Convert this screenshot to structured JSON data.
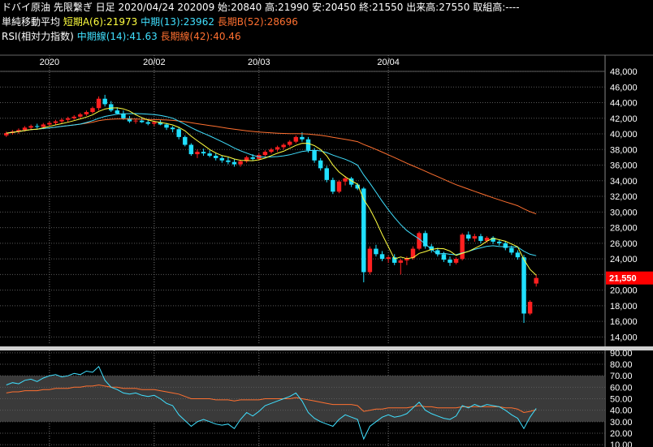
{
  "header": {
    "title": "ドバイ原油 先限繋ぎ 日足 2020/04/24 202009 始:20840 高:21990 安:20450 終:21550 出来高:27550 取組高:----",
    "ma_label": "単純移動平均",
    "ma_short": "短期A(6):21973",
    "ma_mid": "中期(13):23962",
    "ma_long": "長期B(52):28696",
    "rsi_label": "RSI(相対力指数)",
    "rsi_mid": "中期線(14):41.63",
    "rsi_long": "長期線(42):40.46"
  },
  "colors": {
    "background": "#000000",
    "up_candle": "#ff2020",
    "down_candle": "#20e0ff",
    "ma_short": "#ffff40",
    "ma_mid": "#40e0ff",
    "ma_long": "#ff7030",
    "grid": "#5a5a5a",
    "rsi_band": "#3a3a3a",
    "last_price_box": "#ff0000"
  },
  "chart_data": [
    {
      "type": "candlestick",
      "x_tick_labels": [
        "2020",
        "20/02",
        "20/03",
        "20/04"
      ],
      "y_ticks": [
        "48,000",
        "46,000",
        "44,000",
        "42,000",
        "40,000",
        "38,000",
        "36,000",
        "34,000",
        "32,000",
        "30,000",
        "28,000",
        "26,000",
        "24,000",
        "22,000",
        "20,000",
        "18,000",
        "16,000",
        "14,000"
      ],
      "ylim": [
        13000,
        48000
      ],
      "last_price_label": "21,550",
      "last_price": 21550,
      "candles": [
        [
          39800,
          40300,
          39600,
          40100
        ],
        [
          40100,
          40500,
          39900,
          40300
        ],
        [
          40300,
          40700,
          40000,
          40500
        ],
        [
          40500,
          41000,
          40300,
          40800
        ],
        [
          40800,
          41200,
          40500,
          41000
        ],
        [
          41000,
          41300,
          40700,
          40900
        ],
        [
          40900,
          41400,
          40600,
          41200
        ],
        [
          41200,
          41600,
          41000,
          41400
        ],
        [
          41400,
          41800,
          41200,
          41600
        ],
        [
          41600,
          42000,
          41300,
          41800
        ],
        [
          41800,
          42200,
          41500,
          42000
        ],
        [
          42000,
          42400,
          41800,
          42200
        ],
        [
          42200,
          42700,
          42000,
          42500
        ],
        [
          42500,
          43000,
          42300,
          42800
        ],
        [
          42800,
          43500,
          42600,
          43300
        ],
        [
          43300,
          44800,
          43000,
          44500
        ],
        [
          44500,
          45000,
          43500,
          43800
        ],
        [
          43800,
          44200,
          42800,
          43000
        ],
        [
          43000,
          43400,
          42500,
          42600
        ],
        [
          42600,
          43000,
          41800,
          42000
        ],
        [
          42000,
          42300,
          41400,
          41600
        ],
        [
          41600,
          42000,
          41300,
          41700
        ],
        [
          41700,
          42100,
          41400,
          41500
        ],
        [
          41500,
          41900,
          41100,
          41300
        ],
        [
          41300,
          41700,
          41000,
          41500
        ],
        [
          41500,
          41800,
          41100,
          41200
        ],
        [
          41200,
          41400,
          40500,
          40800
        ],
        [
          40800,
          41000,
          40200,
          40600
        ],
        [
          40600,
          40900,
          39300,
          39600
        ],
        [
          39600,
          39800,
          38400,
          38600
        ],
        [
          38600,
          38800,
          37200,
          37400
        ],
        [
          37400,
          38000,
          36900,
          37700
        ],
        [
          37700,
          38100,
          37200,
          37500
        ],
        [
          37500,
          37900,
          37000,
          37200
        ],
        [
          37200,
          37600,
          36600,
          36900
        ],
        [
          36900,
          37200,
          36300,
          36600
        ],
        [
          36600,
          37000,
          36100,
          36400
        ],
        [
          36400,
          36800,
          35800,
          36100
        ],
        [
          36100,
          36700,
          35800,
          36500
        ],
        [
          36500,
          37200,
          36300,
          37000
        ],
        [
          37000,
          37400,
          36600,
          36800
        ],
        [
          36800,
          37500,
          36600,
          37300
        ],
        [
          37300,
          37900,
          37100,
          37700
        ],
        [
          37700,
          38200,
          37500,
          38000
        ],
        [
          38000,
          38500,
          37700,
          38300
        ],
        [
          38300,
          38800,
          38000,
          38600
        ],
        [
          38600,
          39200,
          38400,
          39000
        ],
        [
          39000,
          39800,
          38800,
          39600
        ],
        [
          39600,
          40200,
          39000,
          39300
        ],
        [
          39300,
          39600,
          37600,
          37900
        ],
        [
          37900,
          38200,
          36300,
          36600
        ],
        [
          36600,
          36900,
          35300,
          35600
        ],
        [
          35600,
          35900,
          33800,
          34100
        ],
        [
          34100,
          34400,
          32300,
          32600
        ],
        [
          32600,
          34100,
          32400,
          33900
        ],
        [
          33900,
          34600,
          33400,
          34300
        ],
        [
          34300,
          34500,
          33200,
          33500
        ],
        [
          33500,
          33700,
          32800,
          33000
        ],
        [
          33000,
          33200,
          21000,
          22300
        ],
        [
          22300,
          25600,
          22000,
          25300
        ],
        [
          25300,
          25800,
          24300,
          24600
        ],
        [
          24600,
          25000,
          23700,
          24000
        ],
        [
          24000,
          24400,
          23500,
          24200
        ],
        [
          24200,
          24600,
          23200,
          23500
        ],
        [
          23500,
          24000,
          22000,
          23800
        ],
        [
          23800,
          24300,
          23200,
          24100
        ],
        [
          24100,
          25600,
          23900,
          25300
        ],
        [
          25300,
          27500,
          25100,
          27300
        ],
        [
          27300,
          27600,
          25300,
          25600
        ],
        [
          25600,
          25900,
          24800,
          25100
        ],
        [
          25100,
          25400,
          24300,
          24600
        ],
        [
          24600,
          24900,
          23600,
          23900
        ],
        [
          23900,
          24300,
          23100,
          23500
        ],
        [
          23500,
          24200,
          23300,
          24000
        ],
        [
          24000,
          27300,
          23800,
          27100
        ],
        [
          27100,
          27500,
          26300,
          26600
        ],
        [
          26600,
          27200,
          26200,
          26900
        ],
        [
          26900,
          27200,
          26000,
          26300
        ],
        [
          26300,
          26900,
          26100,
          26700
        ],
        [
          26700,
          26900,
          25900,
          26200
        ],
        [
          26200,
          26500,
          25700,
          26000
        ],
        [
          26000,
          26300,
          25100,
          25400
        ],
        [
          25400,
          25700,
          24500,
          24800
        ],
        [
          24800,
          25100,
          23900,
          24200
        ],
        [
          24200,
          24500,
          15800,
          17000
        ],
        [
          17000,
          18700,
          16800,
          18500
        ],
        [
          20840,
          21990,
          20450,
          21550
        ]
      ],
      "x_tick_index": [
        7,
        24,
        41,
        62
      ]
    },
    {
      "type": "line",
      "name": "RSI",
      "y_ticks": [
        "90.00",
        "80.00",
        "70.00",
        "60.00",
        "50.00",
        "40.00",
        "30.00",
        "20.00",
        "10.00"
      ],
      "ylim": [
        8,
        92
      ],
      "rsi14": [
        62,
        64,
        63,
        66,
        67,
        65,
        68,
        70,
        71,
        69,
        70,
        72,
        71,
        74,
        73,
        78,
        66,
        60,
        58,
        55,
        54,
        55,
        53,
        52,
        53,
        50,
        46,
        44,
        36,
        31,
        26,
        30,
        32,
        30,
        28,
        27,
        28,
        24,
        32,
        38,
        35,
        39,
        44,
        46,
        48,
        50,
        52,
        55,
        48,
        38,
        33,
        30,
        28,
        26,
        32,
        36,
        34,
        32,
        15,
        26,
        30,
        34,
        36,
        34,
        35,
        37,
        42,
        47,
        40,
        37,
        35,
        33,
        32,
        35,
        44,
        42,
        45,
        43,
        45,
        44,
        43,
        40,
        36,
        33,
        24,
        34,
        41.63
      ],
      "rsi42": [
        55,
        56,
        56,
        57,
        57,
        57,
        58,
        58,
        59,
        59,
        59,
        60,
        60,
        61,
        61,
        62,
        61,
        60,
        60,
        59,
        59,
        59,
        58,
        58,
        58,
        57,
        56,
        55,
        54,
        52,
        50,
        50,
        50,
        50,
        49,
        49,
        49,
        48,
        49,
        49,
        49,
        49,
        50,
        50,
        50,
        50,
        50,
        51,
        50,
        49,
        48,
        47,
        46,
        45,
        45,
        45,
        45,
        44,
        39,
        40,
        41,
        41,
        42,
        42,
        42,
        42,
        43,
        44,
        43,
        43,
        42,
        42,
        42,
        42,
        43,
        43,
        43,
        43,
        43,
        43,
        43,
        42,
        42,
        41,
        38,
        39,
        40.46
      ]
    }
  ]
}
